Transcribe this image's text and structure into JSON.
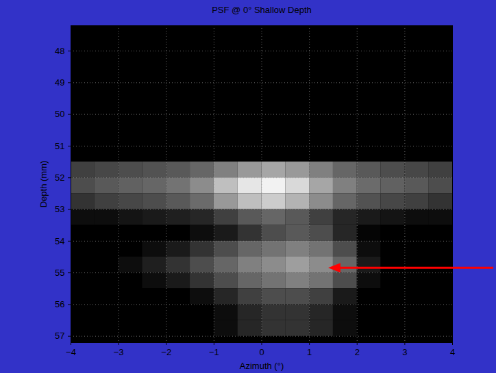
{
  "chart_data": {
    "type": "heatmap",
    "title": "PSF @ 0° Shallow Depth",
    "x_label": "Azimuth (°)",
    "y_label": "Depth (mm)",
    "xlim": [
      -4,
      4
    ],
    "ylim": [
      47.2,
      57.2
    ],
    "xticks": [
      -4,
      -3,
      -2,
      -1,
      0,
      1,
      2,
      3,
      4
    ],
    "yticks": [
      48,
      49,
      50,
      51,
      52,
      53,
      54,
      55,
      56,
      57
    ],
    "grid": true,
    "cells": {
      "x": [
        -3.75,
        -3.25,
        -2.75,
        -2.25,
        -1.75,
        -1.25,
        -0.75,
        -0.25,
        0.25,
        0.75,
        1.25,
        1.75,
        2.25,
        2.75,
        3.25,
        3.75
      ],
      "y": [
        51.75,
        52.25,
        52.75,
        53.25,
        53.75,
        54.25,
        54.75,
        55.25,
        55.75,
        56.25,
        56.75
      ],
      "z": [
        [
          0.25,
          0.28,
          0.3,
          0.32,
          0.35,
          0.4,
          0.5,
          0.6,
          0.65,
          0.6,
          0.5,
          0.4,
          0.35,
          0.3,
          0.28,
          0.25
        ],
        [
          0.3,
          0.35,
          0.38,
          0.4,
          0.45,
          0.55,
          0.75,
          0.9,
          0.95,
          0.85,
          0.65,
          0.5,
          0.42,
          0.38,
          0.35,
          0.3
        ],
        [
          0.2,
          0.25,
          0.28,
          0.3,
          0.35,
          0.42,
          0.6,
          0.75,
          0.8,
          0.7,
          0.55,
          0.4,
          0.32,
          0.28,
          0.25,
          0.2
        ],
        [
          0.05,
          0.05,
          0.08,
          0.1,
          0.12,
          0.15,
          0.25,
          0.35,
          0.4,
          0.35,
          0.25,
          0.15,
          0.1,
          0.08,
          0.05,
          0.05
        ],
        [
          0,
          0,
          0,
          0,
          0,
          0.05,
          0.1,
          0.2,
          0.3,
          0.35,
          0.3,
          0.15,
          0.02,
          0,
          0,
          0
        ],
        [
          0,
          0,
          0,
          0.05,
          0.1,
          0.2,
          0.3,
          0.4,
          0.45,
          0.5,
          0.45,
          0.3,
          0.05,
          0,
          0,
          0
        ],
        [
          0,
          0,
          0.05,
          0.12,
          0.2,
          0.3,
          0.4,
          0.5,
          0.55,
          0.62,
          0.55,
          0.4,
          0.1,
          0,
          0,
          0
        ],
        [
          0,
          0,
          0,
          0.05,
          0.1,
          0.2,
          0.3,
          0.4,
          0.45,
          0.5,
          0.45,
          0.3,
          0.05,
          0,
          0,
          0
        ],
        [
          0,
          0,
          0,
          0,
          0,
          0.05,
          0.15,
          0.25,
          0.3,
          0.3,
          0.25,
          0.1,
          0,
          0,
          0,
          0
        ],
        [
          0,
          0,
          0,
          0,
          0,
          0,
          0.05,
          0.15,
          0.2,
          0.2,
          0.15,
          0.05,
          0,
          0,
          0,
          0
        ],
        [
          0,
          0,
          0,
          0,
          0,
          0,
          0.05,
          0.15,
          0.2,
          0.2,
          0.15,
          0.05,
          0,
          0,
          0,
          0
        ]
      ],
      "zlim": [
        0,
        1
      ]
    },
    "annotations": [
      {
        "type": "arrow",
        "x": 1.4,
        "y": 54.85,
        "color": "red"
      }
    ]
  }
}
